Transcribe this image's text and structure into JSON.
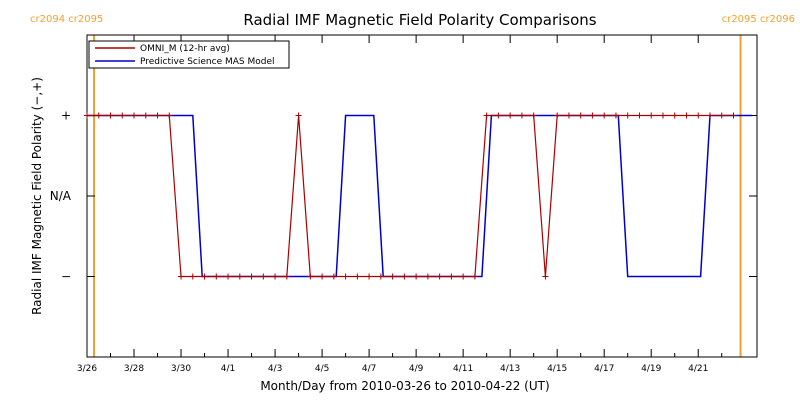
{
  "chart_data": {
    "type": "line",
    "title": "Radial IMF Magnetic Field Polarity Comparisons",
    "xlabel": "Month/Day from 2010-03-26 to 2010-04-22 (UT)",
    "ylabel": "Radial IMF Magnetic Field Polarity (−,+)",
    "x_tick_labels": [
      "3/26",
      "3/28",
      "3/30",
      "4/1",
      "4/3",
      "4/5",
      "4/7",
      "4/9",
      "4/11",
      "4/13",
      "4/15",
      "4/17",
      "4/19",
      "4/21"
    ],
    "x_tick_days": [
      0,
      2,
      4,
      6,
      8,
      10,
      12,
      14,
      16,
      18,
      20,
      22,
      24,
      26
    ],
    "y_tick_labels": [
      "−",
      "N/A",
      "+"
    ],
    "y_tick_values": [
      -1,
      0,
      1
    ],
    "ylim": [
      -2,
      2
    ],
    "xlim": [
      0,
      28.5
    ],
    "x_units": "days since 2010-03-26 00:00 UT",
    "carrington": [
      {
        "label": "cr2094 cr2095",
        "day": 0.3,
        "side": "left"
      },
      {
        "label": "cr2095 cr2096",
        "day": 27.8,
        "side": "right"
      }
    ],
    "series": [
      {
        "name": "OMNI_M (12-hr avg)",
        "color": "#aa0000",
        "marker": "+",
        "x": [
          0.0,
          0.5,
          1.0,
          1.5,
          2.0,
          2.5,
          3.0,
          3.5,
          4.0,
          4.5,
          5.0,
          5.5,
          6.0,
          6.5,
          7.0,
          7.5,
          8.0,
          8.5,
          9.0,
          9.5,
          10.0,
          10.5,
          11.0,
          11.5,
          12.0,
          12.5,
          13.0,
          13.5,
          14.0,
          14.5,
          15.0,
          15.5,
          16.0,
          16.5,
          17.0,
          17.5,
          18.0,
          18.5,
          19.0,
          19.5,
          20.0,
          20.5,
          21.0,
          21.5,
          22.0,
          22.5,
          23.0,
          23.5,
          24.0,
          24.5,
          25.0,
          25.5,
          26.0,
          26.5,
          27.0,
          27.5
        ],
        "y": [
          1,
          1,
          1,
          1,
          1,
          1,
          1,
          1,
          -1,
          -1,
          -1,
          -1,
          -1,
          -1,
          -1,
          -1,
          -1,
          -1,
          1,
          -1,
          -1,
          -1,
          -1,
          -1,
          -1,
          -1,
          -1,
          -1,
          -1,
          -1,
          -1,
          -1,
          -1,
          -1,
          1,
          1,
          1,
          1,
          1,
          -1,
          1,
          1,
          1,
          1,
          1,
          1,
          1,
          1,
          1,
          1,
          1,
          1,
          1,
          1,
          1,
          1
        ]
      },
      {
        "name": "Predictive Science MAS Model",
        "color": "#0000cc",
        "x": [
          0.0,
          4.5,
          4.9,
          10.6,
          11.0,
          12.2,
          12.6,
          16.8,
          17.2,
          22.6,
          23.0,
          26.1,
          26.5,
          28.3
        ],
        "y": [
          1,
          1,
          -1,
          -1,
          1,
          1,
          -1,
          -1,
          1,
          1,
          -1,
          -1,
          1,
          1
        ]
      }
    ],
    "legend_position": "top-left"
  }
}
